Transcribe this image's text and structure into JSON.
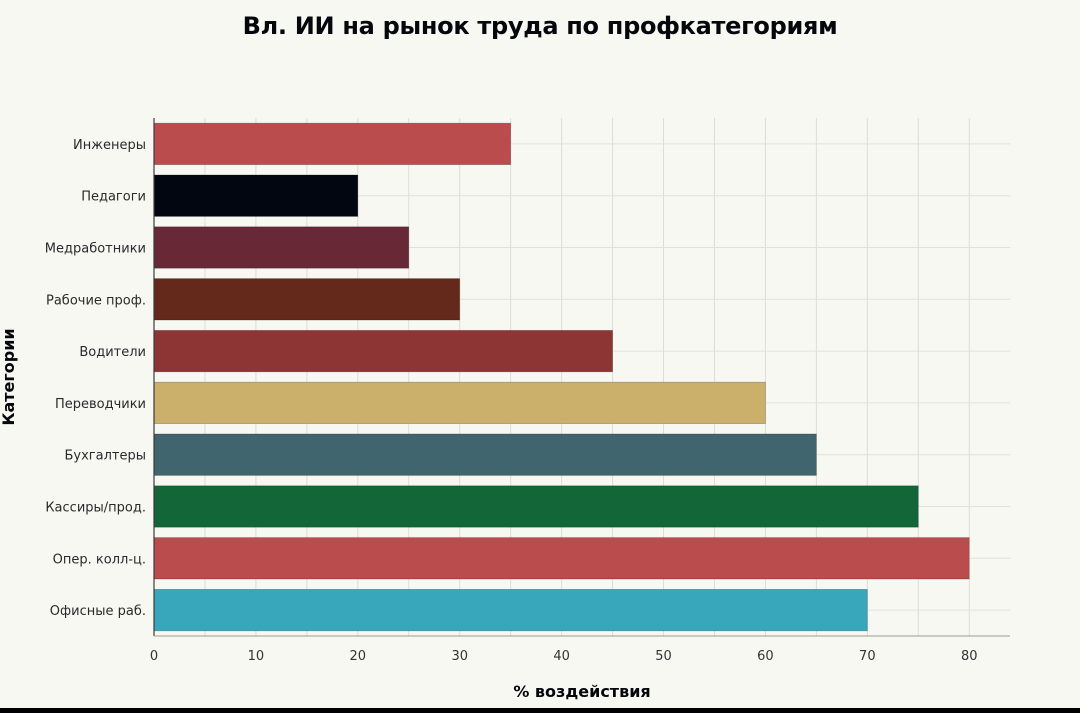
{
  "chart_data": {
    "type": "bar",
    "orientation": "horizontal",
    "title": "Вл. ИИ на рынок труда по профкатегориям",
    "xlabel": "% воздействия",
    "ylabel": "Категории",
    "xlim": [
      0,
      84
    ],
    "xticks": [
      0,
      10,
      20,
      30,
      40,
      50,
      60,
      70,
      80
    ],
    "grid": true,
    "categories": [
      "Инженеры",
      "Педагоги",
      "Медработники",
      "Рабочие проф.",
      "Водители",
      "Переводчики",
      "Бухгалтеры",
      "Кассиры/прод.",
      "Опер. колл-ц.",
      "Офисные раб."
    ],
    "values": [
      35,
      20,
      25,
      30,
      45,
      60,
      65,
      75,
      80,
      70
    ],
    "colors": [
      "#bb4c4d",
      "#020610",
      "#682836",
      "#65291b",
      "#8d3535",
      "#cab06a",
      "#41656e",
      "#136638",
      "#bb4c4d",
      "#38a6bb"
    ]
  }
}
